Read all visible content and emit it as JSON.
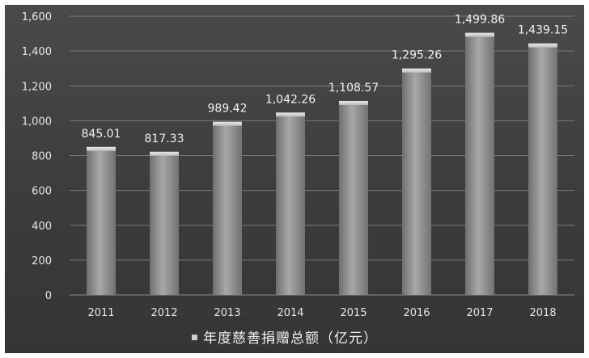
{
  "chart_data": {
    "type": "bar",
    "categories": [
      "2011",
      "2012",
      "2013",
      "2014",
      "2015",
      "2016",
      "2017",
      "2018"
    ],
    "series": [
      {
        "name": "年度慈善捐赠总额（亿元）",
        "values": [
          845.01,
          817.33,
          989.42,
          1042.26,
          1108.57,
          1295.26,
          1499.86,
          1439.15
        ]
      }
    ],
    "data_labels": [
      "845.01",
      "817.33",
      "989.42",
      "1,042.26",
      "1,108.57",
      "1,295.26",
      "1,499.86",
      "1,439.15"
    ],
    "y_ticks": [
      "0",
      "200",
      "400",
      "600",
      "800",
      "1,000",
      "1,200",
      "1,400",
      "1,600"
    ],
    "ylim": [
      0,
      1600
    ],
    "grid": true,
    "legend_position": "bottom",
    "colors": {
      "background": "#3e3e3e",
      "bar": "#9a9a9a",
      "grid": "#7a7a7a"
    }
  }
}
